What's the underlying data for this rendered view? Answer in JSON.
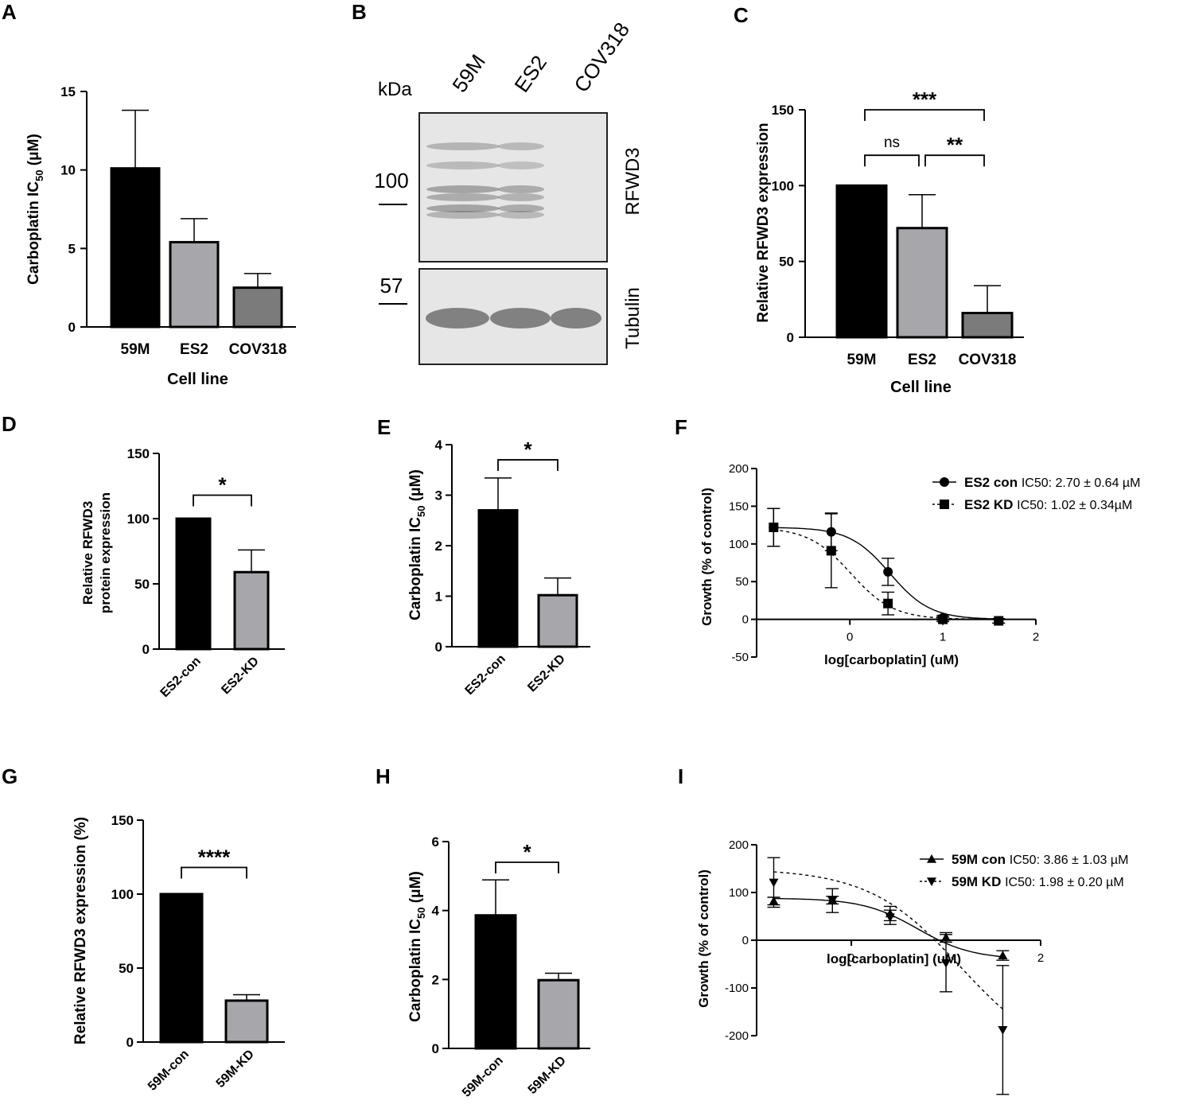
{
  "chart_data": [
    {
      "panel": "A",
      "type": "bar",
      "categories": [
        "59M",
        "ES2",
        "COV318"
      ],
      "values": [
        10.1,
        5.4,
        2.5
      ],
      "errors": [
        3.7,
        1.5,
        0.9
      ],
      "colors": [
        "#000000",
        "#a6a6ab",
        "#7b7b7b"
      ],
      "ylim": [
        0,
        15
      ],
      "yticks": [
        0,
        5,
        10,
        15
      ],
      "ytick_labels": [
        "0",
        "5",
        "10",
        "15"
      ],
      "ylabel_main": "Carboplatin IC",
      "ylabel_sub": "50",
      "ylabel_tail": " (μM)",
      "xlabel": "Cell line",
      "rotate_ticks": false,
      "sig": []
    },
    {
      "panel": "C",
      "type": "bar",
      "categories": [
        "59M",
        "ES2",
        "COV318"
      ],
      "values": [
        100,
        72,
        16
      ],
      "errors": [
        0,
        22,
        18
      ],
      "colors": [
        "#000000",
        "#a6a6ab",
        "#7b7b7b"
      ],
      "ylim": [
        0,
        150
      ],
      "yticks": [
        0,
        50,
        100,
        150
      ],
      "ytick_labels": [
        "0",
        "50",
        "100",
        "150"
      ],
      "ylabel_main": "Relative RFWD3 expression",
      "ylabel_sub": "",
      "ylabel_tail": "",
      "xlabel": "Cell line",
      "rotate_ticks": false,
      "sig": [
        {
          "from": 0,
          "to": 2,
          "text": "***",
          "level": 150
        },
        {
          "from": 0,
          "to": 1,
          "text": "ns",
          "level": 120
        },
        {
          "from": 1,
          "to": 2,
          "text": "**",
          "level": 120
        }
      ]
    },
    {
      "panel": "D",
      "type": "bar",
      "categories": [
        "ES2-con",
        "ES2-KD"
      ],
      "values": [
        100,
        59
      ],
      "errors": [
        0,
        17
      ],
      "colors": [
        "#000000",
        "#a6a6ab"
      ],
      "ylim": [
        0,
        150
      ],
      "yticks": [
        0,
        50,
        100,
        150
      ],
      "ytick_labels": [
        "0",
        "50",
        "100",
        "150"
      ],
      "ylabel_main": "Relative RFWD3",
      "ylabel_line2": "protein expression",
      "ylabel_sub": "",
      "ylabel_tail": "",
      "xlabel": "",
      "rotate_ticks": true,
      "sig": [
        {
          "from": 0,
          "to": 1,
          "text": "*",
          "level": 118
        }
      ]
    },
    {
      "panel": "E",
      "type": "bar",
      "categories": [
        "ES2-con",
        "ES2-KD"
      ],
      "values": [
        2.7,
        1.02
      ],
      "errors": [
        0.64,
        0.34
      ],
      "colors": [
        "#000000",
        "#a6a6ab"
      ],
      "ylim": [
        0,
        4
      ],
      "yticks": [
        0,
        1,
        2,
        3,
        4
      ],
      "ytick_labels": [
        "0",
        "1",
        "2",
        "3",
        "4"
      ],
      "ylabel_main": "Carboplatin IC",
      "ylabel_sub": "50",
      "ylabel_tail": " (μM)",
      "xlabel": "",
      "rotate_ticks": true,
      "sig": [
        {
          "from": 0,
          "to": 1,
          "text": "*",
          "level": 3.7
        }
      ]
    },
    {
      "panel": "F",
      "type": "scatter",
      "xlim": [
        -0.9,
        2
      ],
      "xticks": [
        0,
        1,
        2
      ],
      "xtick_labels": [
        "0",
        "1",
        "2"
      ],
      "ylim": [
        -50,
        200
      ],
      "yticks": [
        -50,
        0,
        50,
        100,
        150,
        200
      ],
      "ytick_labels": [
        "-50",
        "0",
        "50",
        "100",
        "150",
        "200"
      ],
      "xlabel": "log[carboplatin] (uM)",
      "ylabel": "Growth (% of control)",
      "series": [
        {
          "name": "ES2 con",
          "ic50": "IC50:  2.70 ± 0.64 µM",
          "marker": "circle",
          "dash": false,
          "x": [
            -0.82,
            -0.2,
            0.41,
            1.0,
            1.6
          ],
          "y": [
            122,
            116,
            63,
            2,
            -2
          ],
          "err": [
            25,
            25,
            18,
            3,
            3
          ],
          "curve": {
            "top": 122,
            "bottom": 0,
            "logec50": 0.43,
            "hill": 2.0
          }
        },
        {
          "name": "ES2 KD",
          "ic50": "IC50: 1.02 ± 0.34µM",
          "marker": "square",
          "dash": true,
          "x": [
            -0.82,
            -0.2,
            0.41,
            1.0,
            1.6
          ],
          "y": [
            122,
            91,
            21,
            0,
            -2
          ],
          "err": [
            25,
            49,
            15,
            3,
            3
          ],
          "curve": {
            "top": 122,
            "bottom": 0,
            "logec50": 0.01,
            "hill": 1.9
          }
        }
      ]
    },
    {
      "panel": "G",
      "type": "bar",
      "categories": [
        "59M-con",
        "59M-KD"
      ],
      "values": [
        100,
        28
      ],
      "errors": [
        0,
        4
      ],
      "colors": [
        "#000000",
        "#a6a6ab"
      ],
      "ylim": [
        0,
        150
      ],
      "yticks": [
        0,
        50,
        100,
        150
      ],
      "ytick_labels": [
        "0",
        "50",
        "100",
        "150"
      ],
      "ylabel_main": "Relative RFWD3 expression (%)",
      "ylabel_sub": "",
      "ylabel_tail": "",
      "xlabel": "",
      "rotate_ticks": true,
      "sig": [
        {
          "from": 0,
          "to": 1,
          "text": "****",
          "level": 118
        }
      ]
    },
    {
      "panel": "H",
      "type": "bar",
      "categories": [
        "59M-con",
        "59M-KD"
      ],
      "values": [
        3.86,
        1.98
      ],
      "errors": [
        1.03,
        0.2
      ],
      "colors": [
        "#000000",
        "#a6a6ab"
      ],
      "ylim": [
        0,
        6
      ],
      "yticks": [
        0,
        2,
        4,
        6
      ],
      "ytick_labels": [
        "0",
        "2",
        "4",
        "6"
      ],
      "ylabel_main": "Carboplatin IC",
      "ylabel_sub": "50",
      "ylabel_tail": " (μM)",
      "xlabel": "",
      "rotate_ticks": true,
      "sig": [
        {
          "from": 0,
          "to": 1,
          "text": "*",
          "level": 5.4
        }
      ]
    },
    {
      "panel": "I",
      "type": "scatter",
      "xlim": [
        -0.9,
        2
      ],
      "xticks": [
        0,
        2
      ],
      "xtick_labels": [
        "0",
        "2"
      ],
      "ylim": [
        -200,
        200
      ],
      "yticks": [
        -200,
        -100,
        0,
        100,
        200
      ],
      "ytick_labels": [
        "-200",
        "-100",
        "0",
        "100",
        "200"
      ],
      "xlabel": "log[carboplatin] (uM)",
      "ylabel": "Growth (% of control)",
      "series": [
        {
          "name": "59M con",
          "ic50": "IC50:  3.86 ± 1.03 µM",
          "marker": "triangle-up",
          "dash": false,
          "x": [
            -0.82,
            -0.2,
            0.41,
            1.0,
            1.6
          ],
          "y": [
            82,
            84,
            56,
            6,
            -32
          ],
          "err": [
            8,
            8,
            15,
            10,
            10
          ],
          "curve": {
            "top": 88,
            "bottom": -40,
            "logec50": 0.7,
            "hill": 1.5
          }
        },
        {
          "name": "59M KD",
          "ic50": "IC50: 1.98 ± 0.20 µM",
          "marker": "triangle-down",
          "dash": true,
          "x": [
            -0.82,
            -0.2,
            0.41,
            1.0,
            1.6
          ],
          "y": [
            121,
            83,
            48,
            -48,
            -188
          ],
          "err": [
            52,
            25,
            15,
            60,
            135
          ],
          "curve": {
            "top": 150,
            "bottom": -260,
            "logec50": 1.15,
            "hill": 0.9
          }
        }
      ]
    }
  ],
  "panel_letters": [
    "A",
    "B",
    "C",
    "D",
    "E",
    "F",
    "G",
    "H",
    "I"
  ],
  "blot": {
    "unit": "kDa",
    "lanes": [
      "59M",
      "ES2",
      "COV318"
    ],
    "markers": [
      "100",
      "57"
    ],
    "proteins": [
      "RFWD3",
      "Tubulin"
    ]
  }
}
